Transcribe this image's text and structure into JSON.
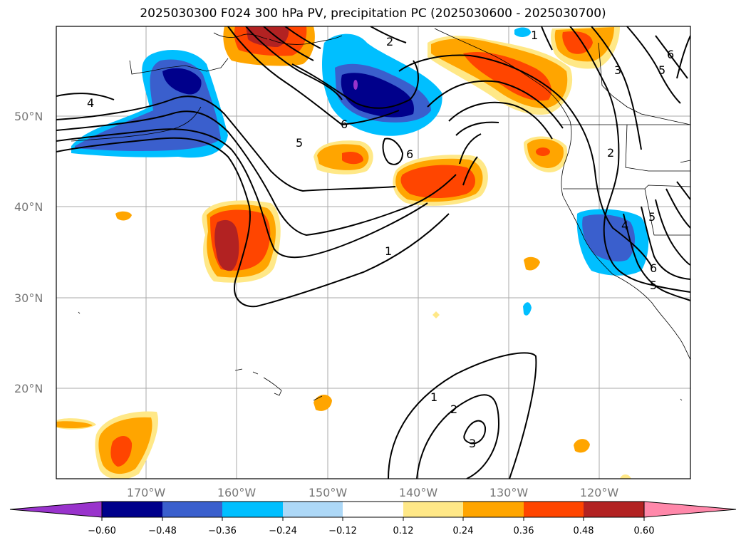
{
  "title": "2025030300 F024 300 hPa PV, precipitation PC (2025030600 - 2025030700)",
  "map": {
    "lat_labels": [
      "50°N",
      "40°N",
      "30°N",
      "20°N"
    ],
    "lon_labels": [
      "170°W",
      "160°W",
      "150°W",
      "140°W",
      "130°W",
      "120°W"
    ],
    "contour_labels": [
      "4",
      "5",
      "6",
      "6",
      "2",
      "1",
      "1",
      "6",
      "5",
      "3",
      "2",
      "4",
      "5",
      "6",
      "5",
      "1",
      "2",
      "3"
    ],
    "gridline_color": "#aaaaaa"
  },
  "colorbar": {
    "ticks": [
      "−0.60",
      "−0.48",
      "−0.36",
      "−0.24",
      "−0.12",
      "0.12",
      "0.24",
      "0.36",
      "0.48",
      "0.60"
    ],
    "colors": [
      "#9933cc",
      "#00008b",
      "#3a5fcd",
      "#00bfff",
      "#add8f7",
      "#ffffff",
      "#ffe887",
      "#ffa500",
      "#ff4500",
      "#b22222",
      "#ff88aa"
    ]
  }
}
